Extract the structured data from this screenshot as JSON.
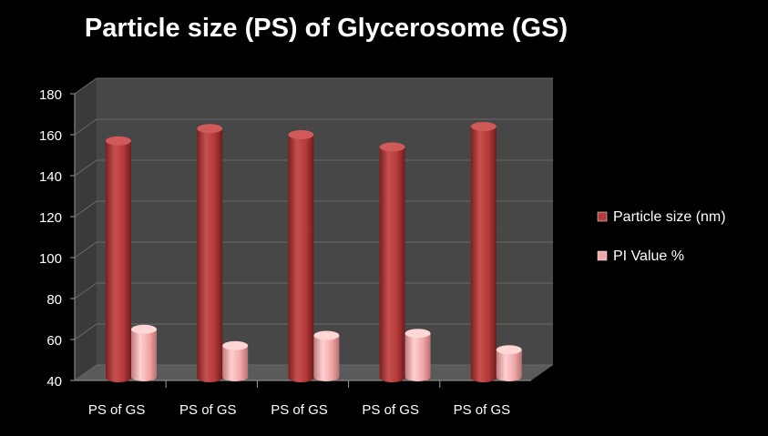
{
  "chart_data": {
    "type": "bar",
    "title": "Particle size (PS) of Glycerosome (GS)",
    "categories": [
      "PS of GS",
      "PS of GS",
      "PS of GS",
      "PS of GS",
      "PS of GS"
    ],
    "series": [
      {
        "name": "Particle size (nm)",
        "values": [
          157,
          163,
          160,
          154,
          164
        ],
        "color": "#b73a3a"
      },
      {
        "name": "PI Value %",
        "values": [
          65,
          57,
          62,
          63,
          55
        ],
        "color": "#f0a8a8"
      }
    ],
    "ylim": [
      40,
      180
    ],
    "yticks": [
      40,
      60,
      80,
      100,
      120,
      140,
      160,
      180
    ],
    "grid": true,
    "legend_position": "right",
    "style": "3d-cylinder",
    "colors": {
      "background": "#000000",
      "plot_wall": "#474747",
      "gridline": "#6a6a6a",
      "text": "#ffffff"
    }
  }
}
